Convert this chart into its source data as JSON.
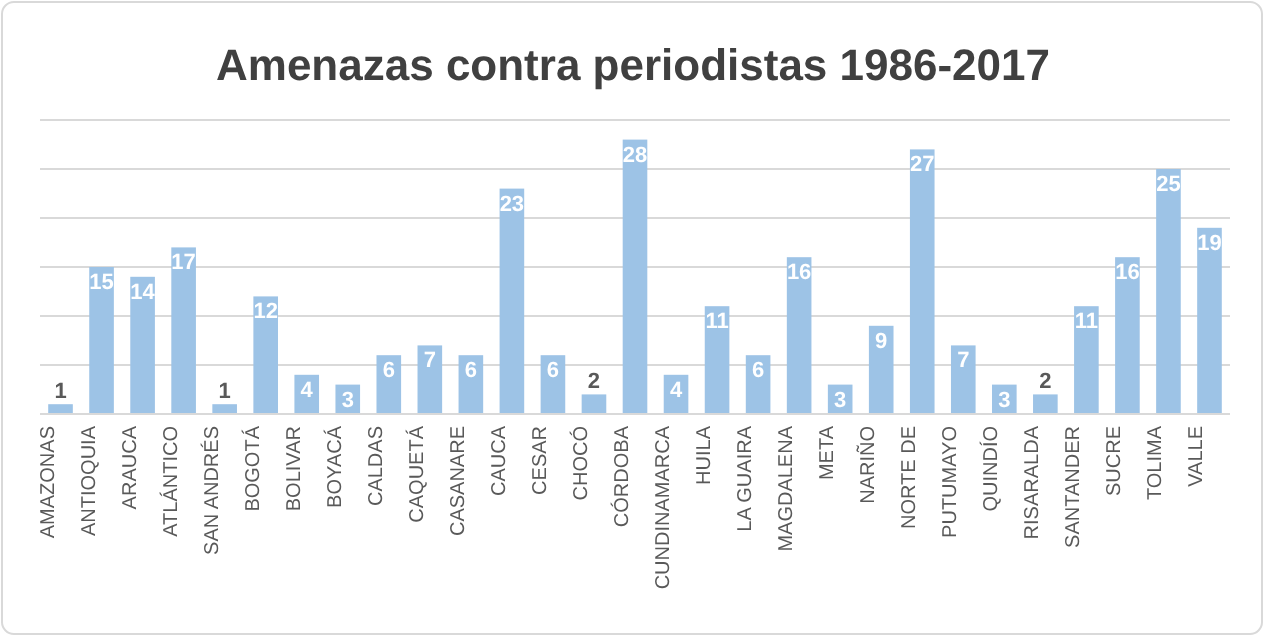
{
  "chart_data": {
    "type": "bar",
    "title": "Amenazas contra periodistas 1986-2017",
    "categories": [
      "AMAZONAS",
      "ANTIOQUIA",
      "ARAUCA",
      "ATLÁNTICO",
      "SAN ANDRÉS",
      "BOGOTÁ",
      "BOLIVAR",
      "BOYACÁ",
      "CALDAS",
      "CAQUETÁ",
      "CASANARE",
      "CAUCA",
      "CESAR",
      "CHOCÓ",
      "CÓRDOBA",
      "CUNDINAMARCA",
      "HUILA",
      "LA GUAIRA",
      "MAGDALENA",
      "META",
      "NARIÑO",
      "NORTE DE",
      "PUTUMAYO",
      "QUINDÍO",
      "RISARALDA",
      "SANTANDER",
      "SUCRE",
      "TOLIMA",
      "VALLE"
    ],
    "values": [
      1,
      15,
      14,
      17,
      1,
      12,
      4,
      3,
      6,
      7,
      6,
      23,
      6,
      2,
      28,
      4,
      11,
      6,
      16,
      3,
      9,
      27,
      7,
      3,
      2,
      11,
      16,
      25,
      19
    ],
    "color": "#9dc3e6",
    "ylim": [
      0,
      30
    ],
    "yticks": [
      {
        "value": 0,
        "label": null
      },
      {
        "value": 5,
        "label": null
      },
      {
        "value": 10,
        "label": null
      },
      {
        "value": 15,
        "label": null
      },
      {
        "value": 20,
        "label": null
      },
      {
        "value": 25,
        "label": null
      },
      {
        "value": 30,
        "label": null
      }
    ],
    "tick_labels": "x",
    "grid": "y",
    "data_labels": true
  }
}
